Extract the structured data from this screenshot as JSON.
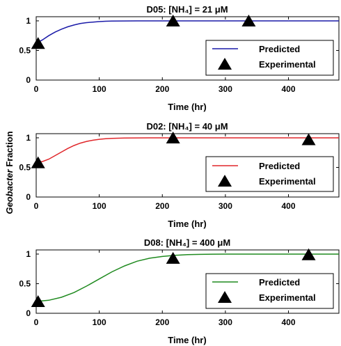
{
  "figure": {
    "ylabel_italic": "Geobacter",
    "ylabel_rest": " Fraction"
  },
  "chart_data": [
    {
      "type": "line",
      "title": "D05: [NH₄] = 21 μM",
      "xlabel": "Time (hr)",
      "ylabel": "Geobacter Fraction",
      "xlim": [
        0,
        480
      ],
      "ylim": [
        0,
        1.07
      ],
      "xticks": [
        "0",
        "100",
        "200",
        "300",
        "400"
      ],
      "yticks": [
        "0",
        "0.5",
        "1"
      ],
      "legend": {
        "location": "lower-right",
        "entries": [
          "Predicted",
          "Experimental"
        ]
      },
      "series": [
        {
          "name": "Predicted",
          "kind": "line",
          "color": "#1a1aa8",
          "x": [
            0,
            10,
            20,
            30,
            40,
            50,
            60,
            70,
            80,
            90,
            100,
            110,
            120,
            140,
            160,
            180,
            200,
            250,
            300,
            350,
            400,
            450,
            480
          ],
          "y": [
            0.62,
            0.68,
            0.75,
            0.81,
            0.86,
            0.9,
            0.93,
            0.955,
            0.97,
            0.98,
            0.988,
            0.993,
            0.996,
            0.998,
            0.999,
            1.0,
            1.0,
            1.0,
            1.0,
            1.0,
            1.0,
            1.0,
            1.0
          ]
        },
        {
          "name": "Experimental",
          "kind": "marker",
          "marker": "triangle",
          "color": "#000000",
          "x": [
            3,
            217,
            337
          ],
          "y": [
            0.62,
            1.0,
            1.0
          ]
        }
      ]
    },
    {
      "type": "line",
      "title": "D02: [NH₄] = 40 μM",
      "xlabel": "Time (hr)",
      "ylabel": "Geobacter Fraction",
      "xlim": [
        0,
        480
      ],
      "ylim": [
        0,
        1.07
      ],
      "xticks": [
        "0",
        "100",
        "200",
        "300",
        "400"
      ],
      "yticks": [
        "0",
        "0.5",
        "1"
      ],
      "legend": {
        "location": "lower-right",
        "entries": [
          "Predicted",
          "Experimental"
        ]
      },
      "series": [
        {
          "name": "Predicted",
          "kind": "line",
          "color": "#e0262a",
          "x": [
            0,
            10,
            20,
            30,
            40,
            50,
            60,
            70,
            80,
            90,
            100,
            110,
            120,
            140,
            160,
            180,
            200,
            250,
            300,
            350,
            400,
            450,
            480
          ],
          "y": [
            0.58,
            0.6,
            0.64,
            0.7,
            0.76,
            0.82,
            0.87,
            0.91,
            0.94,
            0.96,
            0.975,
            0.985,
            0.99,
            0.996,
            0.998,
            0.999,
            1.0,
            1.0,
            1.0,
            1.0,
            1.0,
            1.0,
            1.0
          ]
        },
        {
          "name": "Experimental",
          "kind": "marker",
          "marker": "triangle",
          "color": "#000000",
          "x": [
            3,
            217,
            432
          ],
          "y": [
            0.58,
            1.0,
            0.97
          ]
        }
      ]
    },
    {
      "type": "line",
      "title": "D08: [NH₄] = 400 μM",
      "xlabel": "Time (hr)",
      "ylabel": "Geobacter Fraction",
      "xlim": [
        0,
        480
      ],
      "ylim": [
        0,
        1.07
      ],
      "xticks": [
        "0",
        "100",
        "200",
        "300",
        "400"
      ],
      "yticks": [
        "0",
        "0.5",
        "1"
      ],
      "legend": {
        "location": "lower-right",
        "entries": [
          "Predicted",
          "Experimental"
        ]
      },
      "series": [
        {
          "name": "Predicted",
          "kind": "line",
          "color": "#1f8a1f",
          "x": [
            0,
            20,
            40,
            60,
            80,
            100,
            120,
            140,
            160,
            180,
            200,
            220,
            240,
            260,
            280,
            300,
            350,
            400,
            450,
            480
          ],
          "y": [
            0.2,
            0.22,
            0.27,
            0.35,
            0.46,
            0.58,
            0.7,
            0.8,
            0.88,
            0.93,
            0.96,
            0.98,
            0.99,
            0.995,
            0.998,
            1.0,
            1.0,
            1.0,
            1.0,
            1.0
          ]
        },
        {
          "name": "Experimental",
          "kind": "marker",
          "marker": "triangle",
          "color": "#000000",
          "x": [
            3,
            217,
            432
          ],
          "y": [
            0.2,
            0.93,
            0.99
          ]
        }
      ]
    }
  ]
}
